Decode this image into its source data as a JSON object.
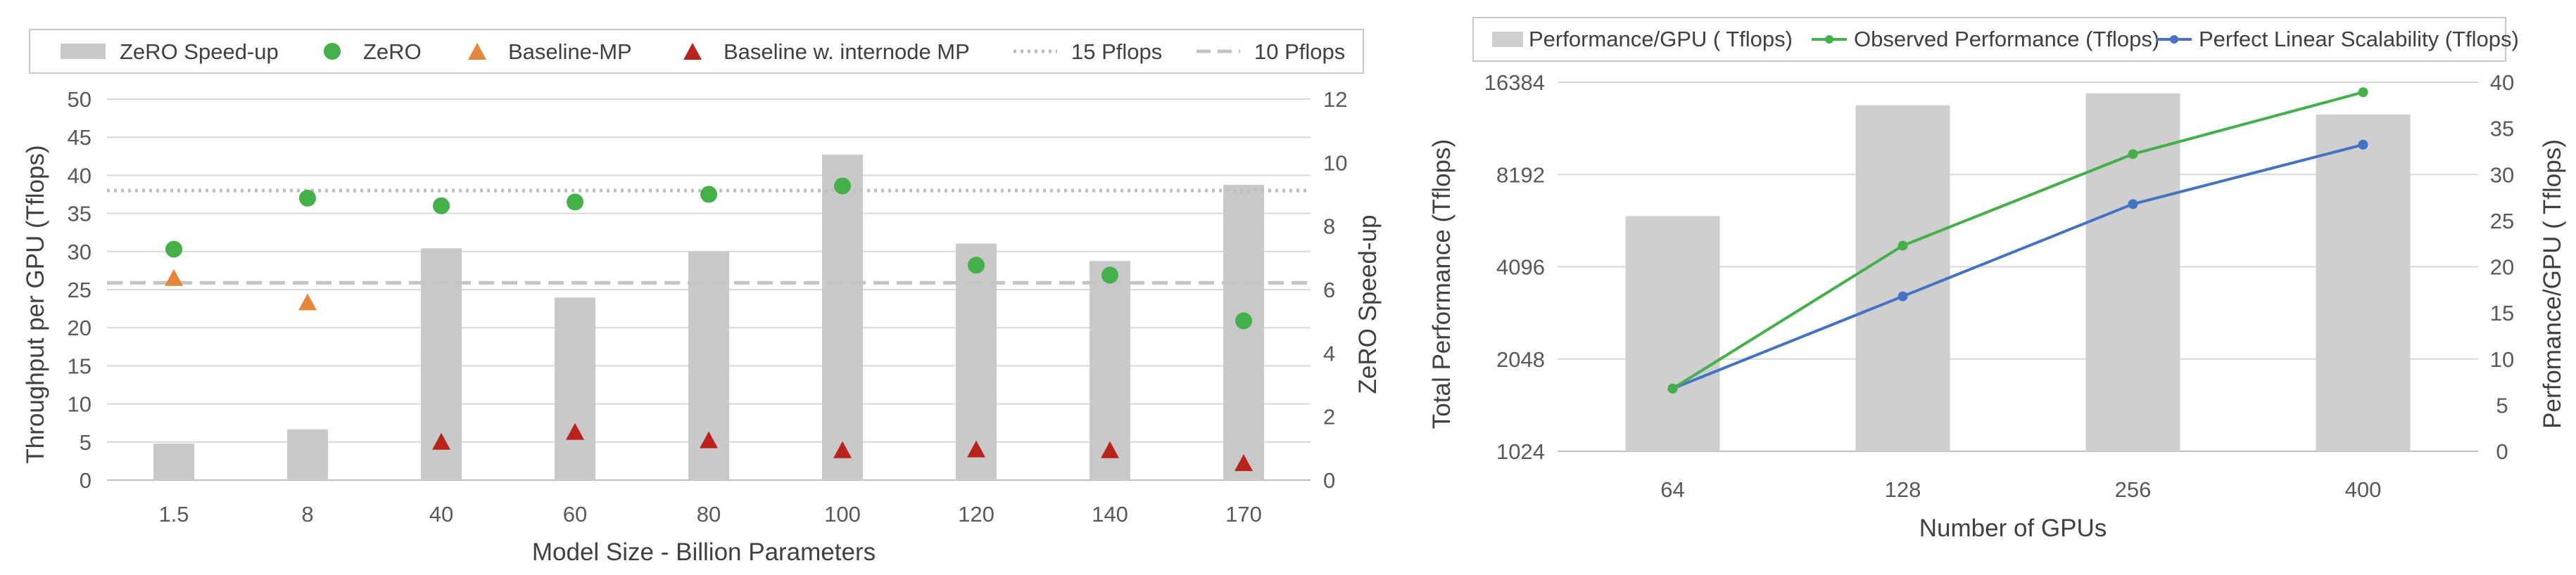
{
  "chart_data": [
    {
      "type": "bar+scatter",
      "title": "",
      "xlabel": "Model Size - Billion Parameters",
      "ylabel": "Throughput per GPU (Tflops)",
      "y2label": "ZeRO Speed-up",
      "categories": [
        "1.5",
        "8",
        "40",
        "60",
        "80",
        "100",
        "120",
        "140",
        "170"
      ],
      "ylim": [
        0,
        50
      ],
      "yticks": [
        0,
        5,
        10,
        15,
        20,
        25,
        30,
        35,
        40,
        45,
        50
      ],
      "y2lim": [
        0,
        12
      ],
      "y2ticks": [
        0,
        2,
        4,
        6,
        8,
        10,
        12
      ],
      "grid": true,
      "legend": "top",
      "series": [
        {
          "name": "ZeRO Speed-up",
          "kind": "bar",
          "axis": "right",
          "values": [
            1.15,
            1.6,
            7.3,
            5.75,
            7.2,
            10.25,
            7.45,
            6.9,
            9.3
          ]
        },
        {
          "name": "ZeRO",
          "kind": "scatter",
          "marker": "circle",
          "axis": "left",
          "values": [
            30.3,
            37.0,
            36.0,
            36.5,
            37.5,
            38.6,
            28.2,
            26.9,
            20.9
          ]
        },
        {
          "name": "Baseline-MP",
          "kind": "scatter",
          "marker": "triangle",
          "axis": "left",
          "values": [
            26.5,
            23.3,
            null,
            null,
            null,
            null,
            null,
            null,
            null
          ]
        },
        {
          "name": "Baseline w. internode MP",
          "kind": "scatter",
          "marker": "triangle",
          "axis": "left",
          "values": [
            null,
            null,
            5.0,
            6.3,
            5.2,
            3.9,
            4.0,
            3.9,
            2.2
          ]
        },
        {
          "name": "15 Pflops",
          "kind": "hline",
          "style": "dotted",
          "axis": "left",
          "value": 38
        },
        {
          "name": "10 Pflops",
          "kind": "hline",
          "style": "dashed",
          "axis": "left",
          "value": 25.9
        }
      ],
      "colors": {
        "bar": "#c9c9c9",
        "zero": "#44b04a",
        "baseline_mp": "#e5863d",
        "internode": "#b8231c",
        "pflops15": "#c0c0c0",
        "pflops10": "#c4c4c4"
      }
    },
    {
      "type": "bar+line",
      "title": "",
      "xlabel": "Number of GPUs",
      "ylabel": "Total Performance (Tflops)",
      "y2label": "Perfomance/GPU ( Tflops)",
      "categories": [
        "64",
        "128",
        "256",
        "400"
      ],
      "yscale": "log2",
      "ylim": [
        1024,
        16384
      ],
      "yticks": [
        1024,
        2048,
        4096,
        8192,
        16384
      ],
      "y2lim": [
        0,
        40
      ],
      "y2ticks": [
        0,
        5,
        10,
        15,
        20,
        25,
        30,
        35,
        40
      ],
      "grid": true,
      "legend": "top",
      "series": [
        {
          "name": "Performance/GPU ( Tflops)",
          "kind": "bar",
          "axis": "right",
          "values": [
            25.5,
            37.5,
            38.8,
            36.5
          ]
        },
        {
          "name": "Observed Performance (Tflops)",
          "kind": "line",
          "axis": "left",
          "values": [
            1640,
            4800,
            9550,
            15200
          ]
        },
        {
          "name": "Perfect Linear Scalability (Tflops)",
          "kind": "line",
          "axis": "left",
          "values": [
            1640,
            3280,
            6560,
            10250
          ]
        }
      ],
      "colors": {
        "bar": "#cfcfcf",
        "observed": "#44b04a",
        "linear": "#4472c4"
      }
    }
  ]
}
